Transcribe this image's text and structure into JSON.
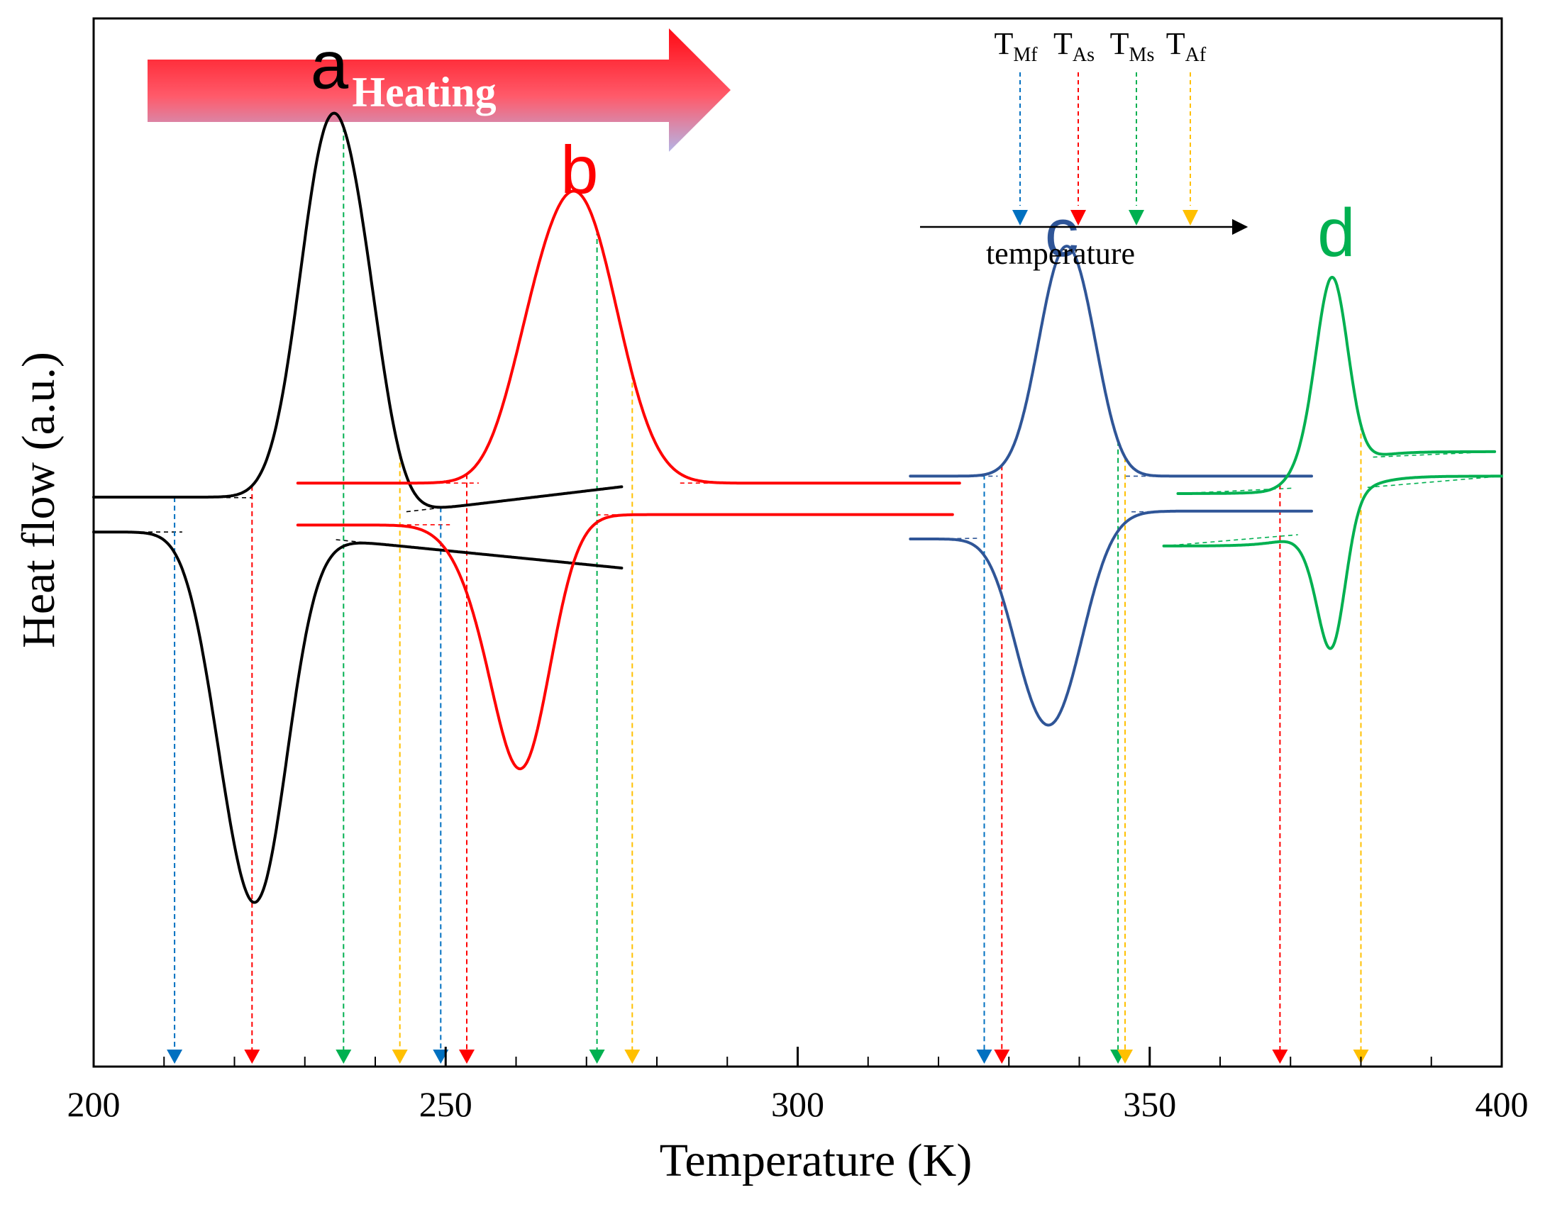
{
  "chart_data": {
    "type": "line",
    "title": "",
    "xlabel": "Temperature (K)",
    "ylabel": "Heat flow (a.u.)",
    "xlim": [
      200,
      400
    ],
    "xticks": [
      200,
      250,
      300,
      350,
      400
    ],
    "xtick_labels": [
      "200",
      "250",
      "300",
      "350",
      "400"
    ],
    "ylim": [
      -8,
      7
    ],
    "arrow_label": "Heating",
    "marker_colors": {
      "TMf": "#0070c0",
      "TAs": "#ff0000",
      "TMs": "#00b050",
      "TAf": "#ffc000"
    },
    "series": [
      {
        "name": "a",
        "label": "a",
        "color": "#000000",
        "label_x": 233.5,
        "label_y": 6.0,
        "heating": {
          "xs": 200,
          "xe": 275,
          "y0": 0.15,
          "y1": -0.2,
          "slope_after": 0.012,
          "peaks": [
            {
              "c": 233.5,
              "h": 5.3,
              "w": 4.2
            },
            {
              "c": 239.0,
              "h": 1.4,
              "w": 3.2
            }
          ]
        },
        "cooling": {
          "xs": 200,
          "xe": 275,
          "y0": -0.35,
          "y1": -0.35,
          "slope_after": -0.01,
          "peaks": [
            {
              "c": 223.5,
              "h": -4.9,
              "w": 4.2
            },
            {
              "c": 218.0,
              "h": -1.2,
              "w": 3.5
            }
          ]
        },
        "markers": {
          "TMf": 211.5,
          "TAs": 222.5,
          "TMs": 235.5,
          "TAf": 243.5,
          "TMf2": 249.3
        }
      },
      {
        "name": "b",
        "label": "b",
        "color": "#ff0000",
        "label_x": 269.0,
        "label_y": 4.5,
        "heating": {
          "xs": 229,
          "xe": 323,
          "y0": 0.35,
          "y1": 0.35,
          "slope_after": 0.0,
          "peaks": [
            {
              "c": 269.0,
              "h": 3.95,
              "w": 5.5
            },
            {
              "c": 262.0,
              "h": 0.9,
              "w": 4.0
            }
          ]
        },
        "cooling": {
          "xs": 229,
          "xe": 322,
          "y0": -0.25,
          "y1": -0.1,
          "slope_after": 0.0,
          "peaks": [
            {
              "c": 261.0,
              "h": -3.35,
              "w": 4.0
            },
            {
              "c": 255.0,
              "h": -0.6,
              "w": 4.0
            }
          ]
        },
        "markers": {
          "TAs": 253.0,
          "TMs": 271.5,
          "TAf": 276.5
        }
      },
      {
        "name": "c",
        "label": "c",
        "color": "#2f5597",
        "label_x": 337.5,
        "label_y": 3.6,
        "heating": {
          "xs": 316,
          "xe": 373,
          "y0": 0.45,
          "y1": 0.45,
          "slope_after": 0.0,
          "peaks": [
            {
              "c": 337.5,
              "h": 2.95,
              "w": 3.5
            },
            {
              "c": 341.5,
              "h": 0.8,
              "w": 2.8
            }
          ]
        },
        "cooling": {
          "xs": 316,
          "xe": 373,
          "y0": -0.45,
          "y1": -0.05,
          "slope_after": 0.0,
          "peaks": [
            {
              "c": 336.5,
              "h": -2.65,
              "w": 4.2
            },
            {
              "c": 332.0,
              "h": -0.5,
              "w": 3.0
            }
          ]
        },
        "markers": {
          "TMf": 326.5,
          "TAs": 329.0,
          "TMs": 345.5,
          "TAf": 346.5
        }
      },
      {
        "name": "d",
        "label": "d",
        "color": "#00b050",
        "label_x": 376.5,
        "label_y": 3.6,
        "heating": {
          "xs": 354,
          "xe": 399,
          "y0": 0.2,
          "y1": 0.8,
          "slope_after": 0.0,
          "peaks": [
            {
              "c": 376.0,
              "h": 2.6,
              "w": 2.2
            },
            {
              "c": 373.0,
              "h": 0.4,
              "w": 2.5
            }
          ]
        },
        "cooling": {
          "xs": 352,
          "xe": 400,
          "y0": -0.55,
          "y1": 0.45,
          "slope_after": 0.0,
          "peaks": [
            {
              "c": 376.0,
              "h": -1.8,
              "w": 1.9
            },
            {
              "c": 373.5,
              "h": -0.3,
              "w": 2.0
            }
          ]
        },
        "markers": {
          "TAs": 368.5,
          "TAf": 380.0
        }
      }
    ],
    "legend": {
      "items": [
        {
          "key": "TMf",
          "base": "T",
          "sub": "Mf"
        },
        {
          "key": "TAs",
          "base": "T",
          "sub": "As"
        },
        {
          "key": "TMs",
          "base": "T",
          "sub": "Ms"
        },
        {
          "key": "TAf",
          "base": "T",
          "sub": "Af"
        }
      ],
      "axis_label": "temperature"
    }
  }
}
